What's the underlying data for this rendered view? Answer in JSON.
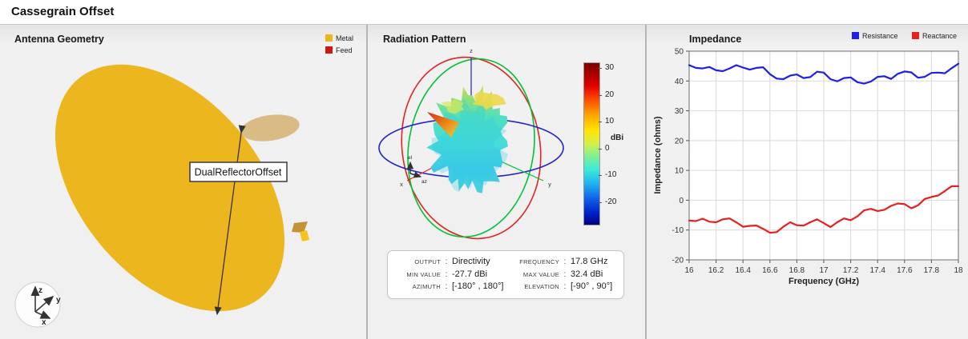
{
  "header": {
    "title": "Cassegrain Offset"
  },
  "geometry_panel": {
    "title": "Antenna Geometry",
    "legend": [
      {
        "label": "Metal",
        "color": "#ecb61f"
      },
      {
        "label": "Feed",
        "color": "#d11616"
      }
    ],
    "annotation_label": "DualReflectorOffset",
    "axis_triad": {
      "x": "x",
      "y": "y",
      "z": "z"
    },
    "colors": {
      "reflector": "#ecb61f",
      "subreflector": "#d9bc85",
      "horn_dark": "#c49136",
      "horn_bright": "#f2c41c",
      "arrow": "#333333"
    }
  },
  "radiation_panel": {
    "title": "Radiation Pattern",
    "axis_labels": {
      "x": "x",
      "y": "y",
      "z": "z",
      "el": "el",
      "az": "az"
    },
    "sphere_colors": {
      "azimuth_circle": "#2222cc",
      "elevation_circle_red": "#e32222",
      "elevation_circle_green": "#00c234"
    },
    "colorbar": {
      "label": "dBi",
      "ticks": [
        30,
        20,
        10,
        0,
        -10,
        -20
      ]
    },
    "info": {
      "left": [
        {
          "label": "OUTPUT",
          "value": "Directivity"
        },
        {
          "label": "MIN VALUE",
          "value": "-27.7 dBi"
        },
        {
          "label": "AZIMUTH",
          "value": "[-180° , 180°]"
        }
      ],
      "right": [
        {
          "label": "FREQUENCY",
          "value": "17.8 GHz"
        },
        {
          "label": "MAX VALUE",
          "value": "32.4 dBi"
        },
        {
          "label": "ELEVATION",
          "value": "[-90° , 90°]"
        }
      ]
    }
  },
  "impedance_panel": {
    "title": "Impedance",
    "legend": [
      {
        "label": "Resistance",
        "color": "#1f1fe8"
      },
      {
        "label": "Reactance",
        "color": "#e81f1f"
      }
    ]
  },
  "chart_data": {
    "type": "line",
    "title": "Impedance",
    "xlabel": "Frequency (GHz)",
    "ylabel": "Impedance (ohms)",
    "xlim": [
      16,
      18
    ],
    "ylim": [
      -20,
      50
    ],
    "grid": true,
    "legend_position": "top-right",
    "xticks": [
      16,
      16.2,
      16.4,
      16.6,
      16.8,
      17,
      17.2,
      17.4,
      17.6,
      17.8,
      18
    ],
    "xtick_labels": [
      "16",
      "16.2",
      "16.4",
      "16.6",
      "16.8",
      "17",
      "17.2",
      "17.4",
      "17.6",
      "17.8",
      "18"
    ],
    "yticks": [
      -20,
      -10,
      0,
      10,
      20,
      30,
      40,
      50
    ],
    "x": [
      16,
      16.05,
      16.1,
      16.15,
      16.2,
      16.25,
      16.3,
      16.35,
      16.4,
      16.45,
      16.5,
      16.55,
      16.6,
      16.65,
      16.7,
      16.75,
      16.8,
      16.85,
      16.9,
      16.95,
      17,
      17.05,
      17.1,
      17.15,
      17.2,
      17.25,
      17.3,
      17.35,
      17.4,
      17.45,
      17.5,
      17.55,
      17.6,
      17.65,
      17.7,
      17.75,
      17.8,
      17.85,
      17.9,
      17.95,
      18
    ],
    "series": [
      {
        "name": "Resistance",
        "color": "#1f1fe8",
        "values": [
          45.3,
          44.4,
          44.2,
          44.7,
          43.6,
          43.3,
          44.2,
          45.3,
          44.5,
          43.8,
          44.4,
          44.6,
          42.3,
          40.8,
          40.6,
          41.8,
          42.2,
          41.0,
          41.3,
          43.1,
          42.8,
          40.6,
          39.9,
          41.0,
          41.2,
          39.6,
          39.1,
          39.8,
          41.4,
          41.6,
          40.7,
          42.4,
          43.2,
          42.9,
          41.1,
          41.4,
          42.7,
          42.8,
          42.6,
          44.3,
          45.8
        ]
      },
      {
        "name": "Reactance",
        "color": "#e81f1f",
        "values": [
          -6.8,
          -7.0,
          -6.2,
          -7.2,
          -7.4,
          -6.4,
          -6.1,
          -7.4,
          -8.9,
          -8.6,
          -8.5,
          -9.6,
          -10.9,
          -10.7,
          -8.9,
          -7.4,
          -8.4,
          -8.5,
          -7.4,
          -6.4,
          -7.7,
          -9.0,
          -7.4,
          -6.1,
          -6.7,
          -5.4,
          -3.4,
          -2.9,
          -3.6,
          -3.2,
          -1.9,
          -1.1,
          -1.3,
          -2.7,
          -1.7,
          0.4,
          1.1,
          1.6,
          3.1,
          4.7,
          4.7
        ]
      }
    ]
  }
}
